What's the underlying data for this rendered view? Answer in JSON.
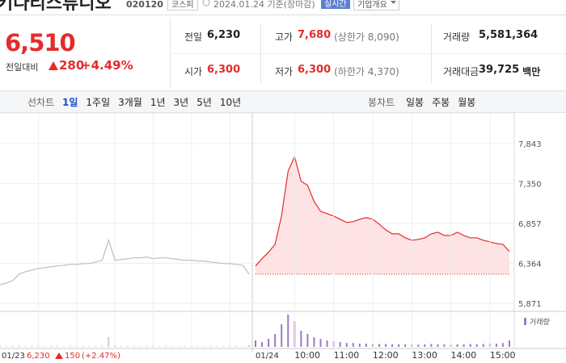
{
  "header": {
    "name": "키다리스튜디오",
    "code": "020120",
    "market": "코스피",
    "date": "2024.01.24 기준(장마감)",
    "realtime": "실시간",
    "company": "기업개요"
  },
  "quote": {
    "price": "6,510",
    "change_label": "전일대비",
    "change": "280",
    "rate": "+4.49%"
  },
  "summary": [
    {
      "label": "전일",
      "value": "6,230"
    },
    {
      "label": "고가",
      "value": "7,680",
      "note": "(상한가 8,090)"
    },
    {
      "label": "거래량",
      "value": "5,581,364"
    },
    {
      "label": "시가",
      "value": "6,300"
    },
    {
      "label": "저가",
      "value": "6,300",
      "note": "(하한가 4,370)"
    },
    {
      "label": "거래대금",
      "value": "39,725",
      "unit": "백만"
    }
  ],
  "tabs": {
    "line_label": "선차트",
    "line": [
      "1일",
      "1주일",
      "3개월",
      "1년",
      "3년",
      "5년",
      "10년"
    ],
    "candle_label": "봉차트",
    "candle": [
      "일봉",
      "주봉",
      "월봉"
    ]
  },
  "chart_data": {
    "type": "line",
    "ylim": [
      5800,
      8120
    ],
    "yticks": [
      {
        "value": 7843,
        "label": "7,843"
      },
      {
        "value": 7350,
        "label": "7,350"
      },
      {
        "value": 6857,
        "label": "6,857"
      },
      {
        "value": 6364,
        "label": "6,364"
      },
      {
        "value": 5871,
        "label": "5,871"
      }
    ],
    "prev_close": 6230,
    "xlabels": [
      "10:00",
      "11:00",
      "12:00",
      "13:00",
      "14:00",
      "15:00"
    ],
    "series": [
      {
        "name": "01/23",
        "color": "#bdbdbd",
        "values": [
          6100,
          6120,
          6150,
          6230,
          6260,
          6280,
          6300,
          6310,
          6320,
          6330,
          6340,
          6350,
          6350,
          6360,
          6360,
          6380,
          6400,
          6650,
          6400,
          6410,
          6420,
          6430,
          6430,
          6440,
          6420,
          6430,
          6430,
          6420,
          6410,
          6400,
          6400,
          6390,
          6390,
          6380,
          6370,
          6360,
          6360,
          6350,
          6340,
          6230
        ]
      },
      {
        "name": "01/24",
        "color": "#e52b2b",
        "values": [
          6330,
          6420,
          6500,
          6600,
          6950,
          7500,
          7680,
          7375,
          7325,
          7126,
          7006,
          6977,
          6947,
          6907,
          6867,
          6877,
          6907,
          6927,
          6907,
          6847,
          6777,
          6727,
          6727,
          6678,
          6648,
          6658,
          6678,
          6727,
          6747,
          6707,
          6707,
          6747,
          6707,
          6678,
          6678,
          6648,
          6628,
          6608,
          6598,
          6510
        ]
      }
    ],
    "volume": {
      "name": "거래량",
      "ylim": [
        0,
        100
      ],
      "series": [
        [
          4,
          3,
          3,
          4,
          3,
          3,
          3,
          2,
          3,
          3,
          2,
          3,
          2,
          3,
          3,
          3,
          4,
          30,
          5,
          3,
          3,
          3,
          2,
          3,
          3,
          2,
          3,
          2,
          2,
          3,
          2,
          2,
          2,
          3,
          2,
          2,
          3,
          3,
          2,
          6
        ],
        [
          20,
          15,
          25,
          40,
          70,
          100,
          80,
          50,
          40,
          30,
          25,
          20,
          18,
          15,
          12,
          12,
          10,
          10,
          10,
          9,
          9,
          8,
          8,
          8,
          8,
          7,
          8,
          9,
          8,
          8,
          7,
          8,
          8,
          9,
          8,
          9,
          10,
          10,
          12,
          20
        ]
      ]
    },
    "footer": {
      "price": "6,230",
      "change": "150",
      "rate": "(+2.47%)"
    }
  }
}
